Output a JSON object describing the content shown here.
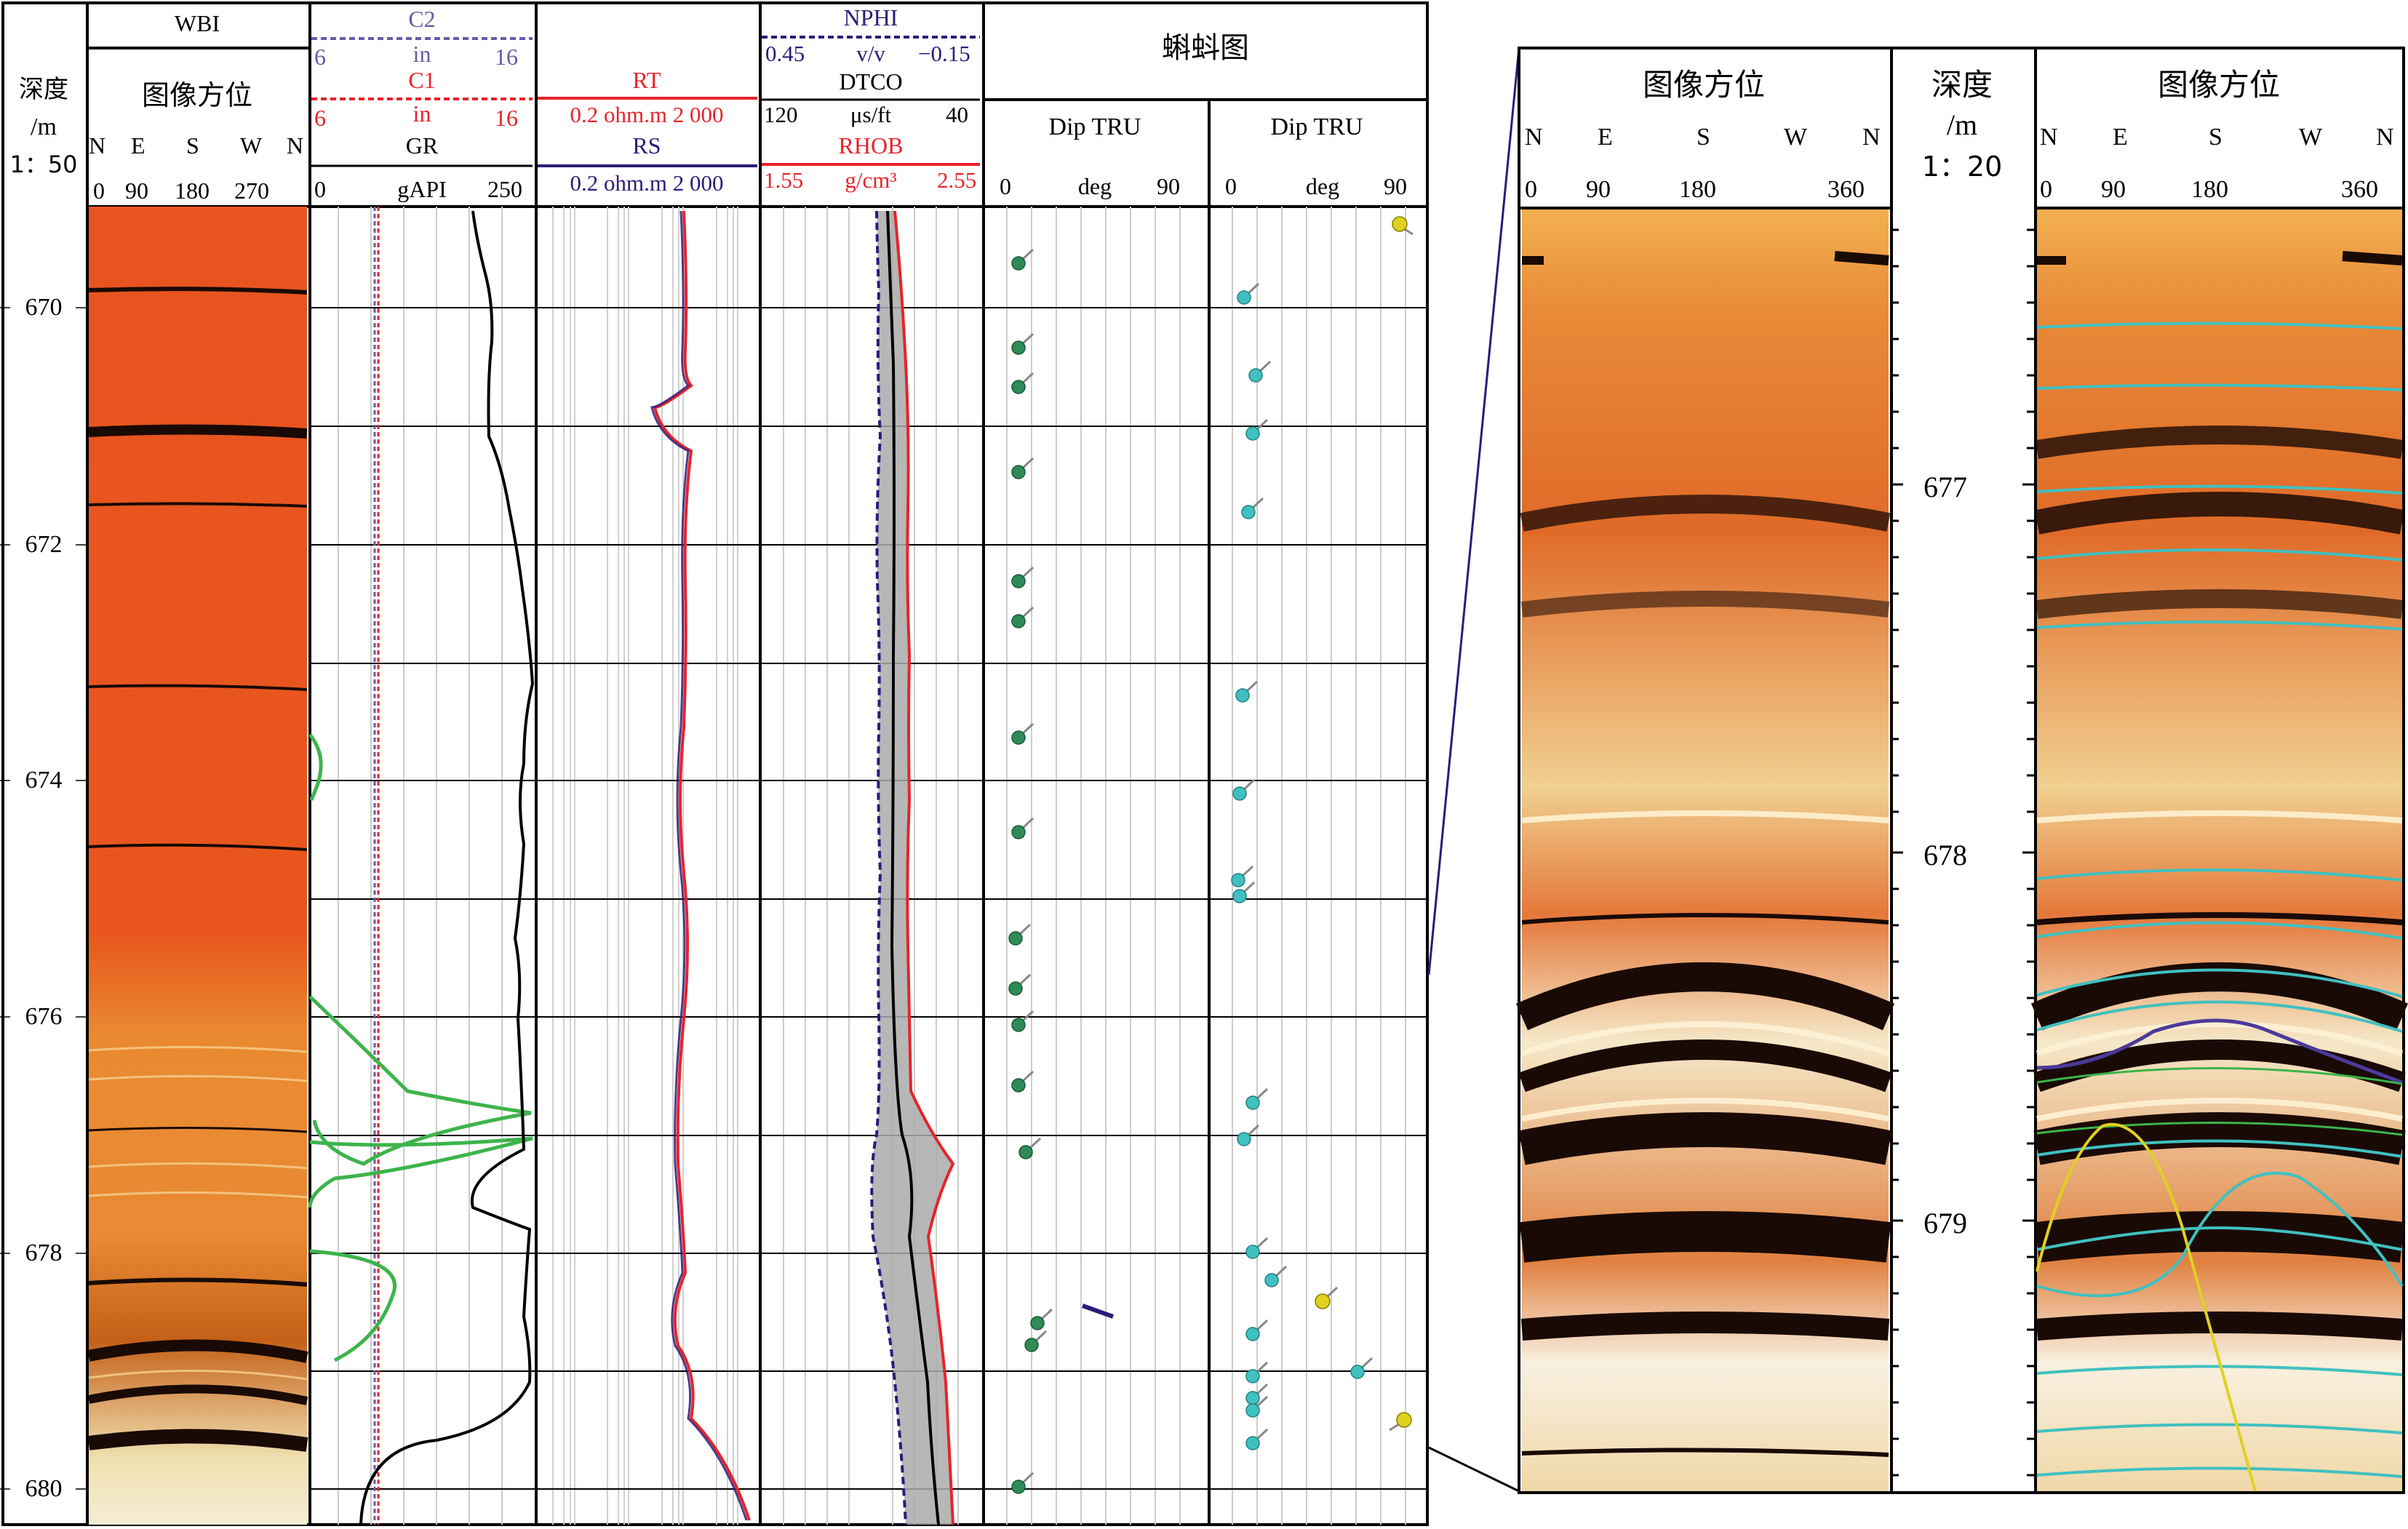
{
  "colors": {
    "c2": "#6a5aa8",
    "c1": "#e8232a",
    "gr": "#000000",
    "rt": "#e8232a",
    "rs": "#2e1a7a",
    "nphi": "#2e1a7a",
    "rhob": "#e8232a",
    "dtco": "#000000",
    "dip_green": "#2e8b57",
    "dip_cyan": "#40c0c0",
    "dip_yellow": "#e0d020",
    "fill_gray": "#aaaaaa",
    "image_orange": "#e8531c",
    "sine_cyan": "#40c0c0",
    "sine_purple": "#4b3a9a",
    "sine_yellow": "#e0d020"
  },
  "depth_track": {
    "title_line1": "深度",
    "title_line2": "/m",
    "scale": "1：50",
    "labels": [
      "670",
      "672",
      "674",
      "676",
      "678",
      "680"
    ]
  },
  "wbi": {
    "title": "WBI",
    "subtitle": "图像方位",
    "dirs": [
      "N",
      "E",
      "S",
      "W",
      "N"
    ],
    "ticks": [
      "0",
      "90",
      "180",
      "270"
    ]
  },
  "track2": {
    "c2_name": "C2",
    "c2_min": "6",
    "c2_unit": "in",
    "c2_max": "16",
    "c1_name": "C1",
    "c1_min": "6",
    "c1_unit": "in",
    "c1_max": "16",
    "gr_name": "GR",
    "gr_min": "0",
    "gr_unit": "gAPI",
    "gr_max": "250"
  },
  "track3": {
    "rt_name": "RT",
    "rt_range": "0.2 ohm.m 2 000",
    "rs_name": "RS",
    "rs_range": "0.2 ohm.m 2 000"
  },
  "track4": {
    "nphi_name": "NPHI",
    "nphi_min": "0.45",
    "nphi_unit": "v/v",
    "nphi_max": "−0.15",
    "dtco_name": "DTCO",
    "dtco_min": "120",
    "dtco_unit": "μs/ft",
    "dtco_max": "40",
    "rhob_name": "RHOB",
    "rhob_min": "1.55",
    "rhob_unit": "g/cm³",
    "rhob_max": "2.55"
  },
  "tadpole": {
    "title": "蝌蚪图",
    "col1_title": "Dip TRU",
    "col2_title": "Dip TRU",
    "min": "0",
    "unit": "deg",
    "max": "90"
  },
  "zoom": {
    "left_title": "图像方位",
    "right_title": "图像方位",
    "depth_title_line1": "深度",
    "depth_title_line2": "/m",
    "scale": "1：20",
    "dirs": [
      "N",
      "E",
      "S",
      "W",
      "N"
    ],
    "ticks": [
      "0",
      "90",
      "180",
      "360"
    ],
    "depth_labels": [
      "677",
      "678",
      "679"
    ]
  }
}
